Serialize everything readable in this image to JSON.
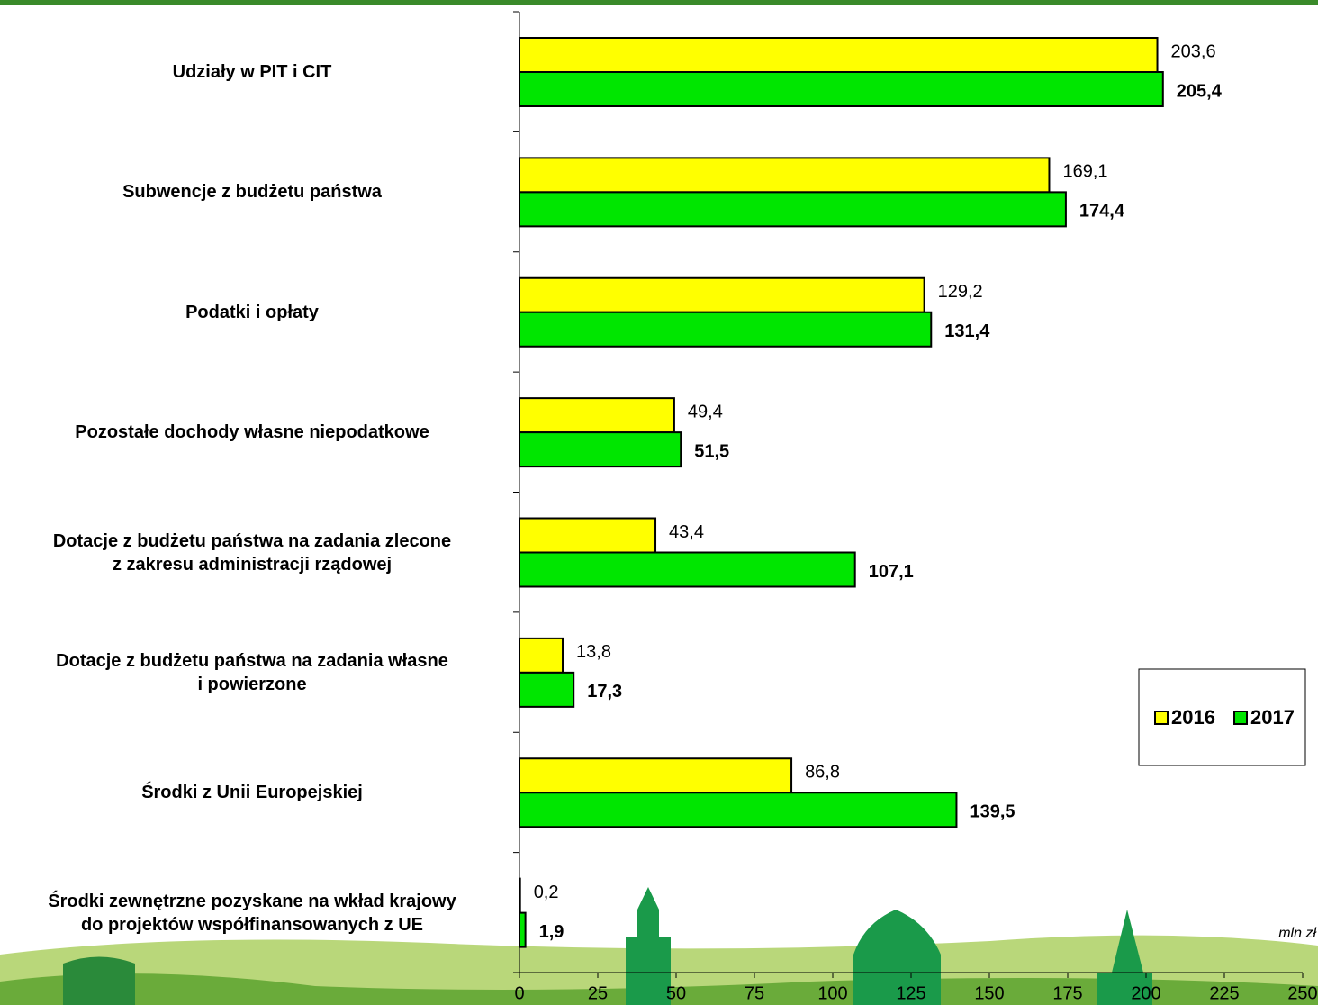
{
  "chart_data": {
    "type": "hbar",
    "categories": [
      "Udziały w PIT i CIT",
      "Subwencje z budżetu państwa",
      "Podatki i opłaty",
      "Pozostałe dochody własne niepodatkowe",
      "Dotacje z budżetu państwa na zadania zlecone\nz zakresu administracji rządowej",
      "Dotacje z budżetu państwa na zadania własne\ni powierzone",
      "Środki z Unii Europejskiej",
      "Środki zewnętrzne pozyskane na wkład krajowy\ndo projektów współfinansowanych z UE"
    ],
    "series": [
      {
        "name": "2016",
        "color": "#ffff00",
        "values": [
          203.6,
          169.1,
          129.2,
          49.4,
          43.4,
          13.8,
          86.8,
          0.2
        ],
        "value_labels": [
          "203,6",
          "169,1",
          "129,2",
          "49,4",
          "43,4",
          "13,8",
          "86,8",
          "0,2"
        ]
      },
      {
        "name": "2017",
        "color": "#00e600",
        "values": [
          205.4,
          174.4,
          131.4,
          51.5,
          107.1,
          17.3,
          139.5,
          1.9
        ],
        "value_labels": [
          "205,4",
          "174,4",
          "131,4",
          "51,5",
          "107,1",
          "17,3",
          "139,5",
          "1,9"
        ]
      }
    ],
    "xlim": [
      0,
      250
    ],
    "xticks": [
      0,
      25,
      50,
      75,
      100,
      125,
      150,
      175,
      200,
      225,
      250
    ],
    "unit_label": "mln zł"
  }
}
